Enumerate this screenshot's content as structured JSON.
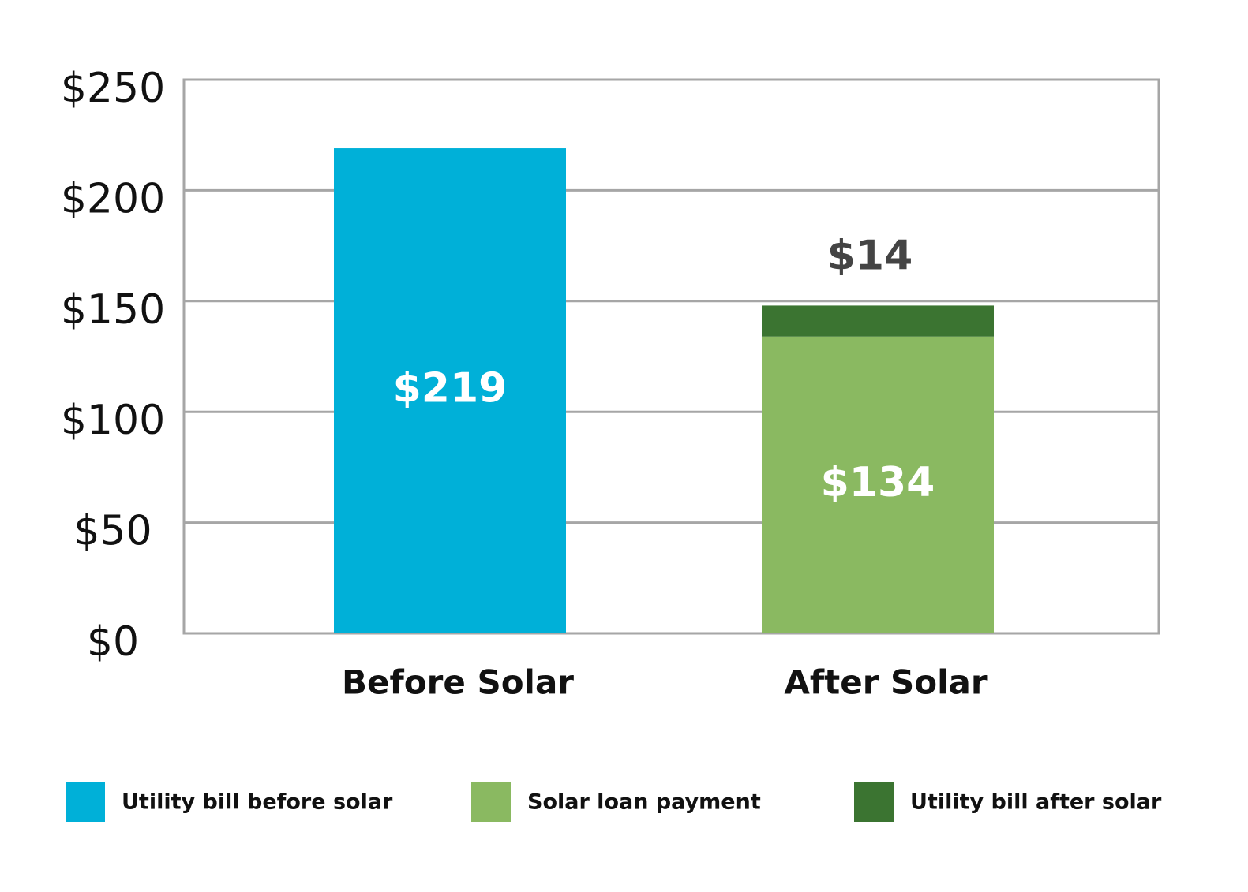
{
  "chart_data": {
    "type": "stacked_bar",
    "categories": [
      "Before Solar",
      "After Solar"
    ],
    "series": [
      {
        "name": "Utility bill before solar",
        "color": "#00b0d8",
        "values": [
          219,
          null
        ],
        "value_labels": [
          "$219",
          null
        ],
        "label_position": "inside"
      },
      {
        "name": "Solar loan payment",
        "color": "#8ab961",
        "values": [
          null,
          134
        ],
        "value_labels": [
          null,
          "$134"
        ],
        "label_position": "inside"
      },
      {
        "name": "Utility bill after solar",
        "color": "#3b7431",
        "values": [
          null,
          14
        ],
        "value_labels": [
          null,
          "$14"
        ],
        "label_position": "above"
      }
    ],
    "ylim": [
      0,
      250
    ],
    "yticks": [
      {
        "value": 0,
        "label": "$0"
      },
      {
        "value": 50,
        "label": "$50"
      },
      {
        "value": 100,
        "label": "$100"
      },
      {
        "value": 150,
        "label": "$150"
      },
      {
        "value": 200,
        "label": "$200"
      },
      {
        "value": 250,
        "label": "$250"
      }
    ],
    "grid": true,
    "legend": "bottom"
  }
}
